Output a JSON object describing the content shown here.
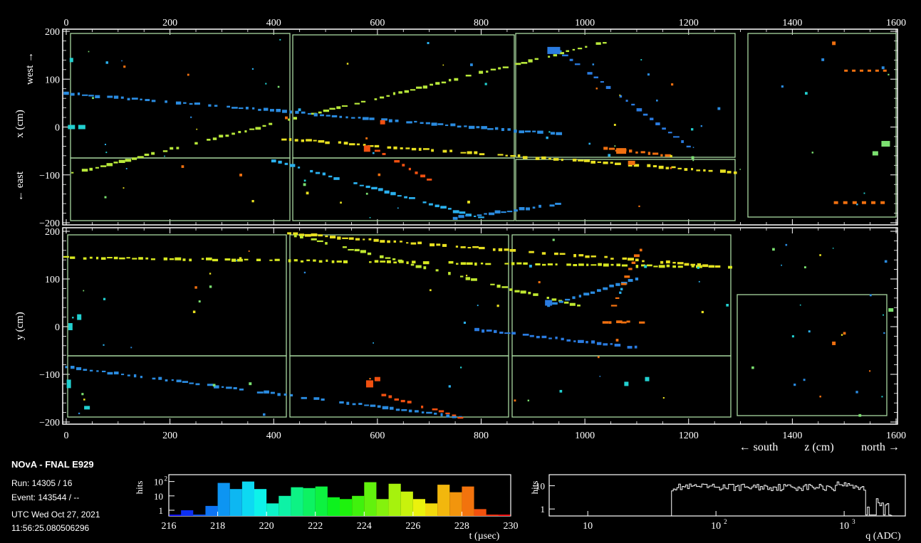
{
  "event_info": {
    "title": "NOvA - FNAL E929",
    "run": "Run:  14305 / 16",
    "event": "Event: 143544 / --",
    "date": "UTC Wed Oct 27, 2021",
    "time": "11:56:25.080506296"
  },
  "top_view": {
    "x_ticks": [
      "0",
      "200",
      "400",
      "600",
      "800",
      "1000",
      "1200",
      "1400",
      "1600"
    ],
    "y_ticks": [
      "200",
      "100",
      "0",
      "−100",
      "−200"
    ],
    "ylabel_west": "west →",
    "ylabel_x": "x (cm)",
    "ylabel_east": "← east",
    "xlim": [
      0,
      1600
    ],
    "ylim": [
      -200,
      200
    ]
  },
  "side_view": {
    "x_ticks": [
      "0",
      "200",
      "400",
      "600",
      "800",
      "1000",
      "1200",
      "1400",
      "1600"
    ],
    "y_ticks": [
      "200",
      "100",
      "0",
      "−100",
      "−200"
    ],
    "ylabel": "y (cm)",
    "xlabel_south": "← south",
    "xlabel_z": "z (cm)",
    "xlabel_north": "north →",
    "xlim": [
      0,
      1600
    ],
    "ylim": [
      -200,
      200
    ]
  },
  "time_hist": {
    "ylabel": "hits",
    "xlabel": "t (µsec)",
    "x_ticks": [
      "216",
      "218",
      "220",
      "222",
      "224",
      "226",
      "228",
      "230"
    ],
    "y_ticks_major": [
      "10",
      "1"
    ],
    "y_tick_top": "10"
  },
  "charge_hist": {
    "ylabel": "hits",
    "xlabel": "q (ADC)",
    "x_ticks": [
      "10",
      "10",
      "10"
    ],
    "x_ticks_exp": [
      "",
      "2",
      "3"
    ],
    "y_ticks": [
      "10",
      "1"
    ]
  },
  "chart_data": [
    {
      "type": "scatter",
      "title": "",
      "xlabel": "",
      "ylabel": "x (cm)",
      "xlim": [
        0,
        1600
      ],
      "ylim": [
        -200,
        200
      ],
      "tracks": [
        {
          "z": [
            0,
            1050
          ],
          "x": [
            -100,
            180
          ],
          "color": "#b8e83a"
        },
        {
          "z": [
            0,
            950
          ],
          "x": [
            70,
            -15
          ],
          "color": "#2a8be0"
        },
        {
          "z": [
            420,
            1290
          ],
          "x": [
            -25,
            -95
          ],
          "color": "#e8e020"
        },
        {
          "z": [
            950,
            1200
          ],
          "x": [
            160,
            -40
          ],
          "color": "#2a7be0"
        },
        {
          "z": [
            400,
            800
          ],
          "x": [
            -70,
            -190
          ],
          "color": "#2ab0ee"
        },
        {
          "z": [
            750,
            960
          ],
          "x": [
            -190,
            -160
          ],
          "color": "#2a8be0"
        },
        {
          "z": [
            600,
            700
          ],
          "x": [
            -50,
            -110
          ],
          "color": "#f05010"
        },
        {
          "z": [
            1040,
            1160
          ],
          "x": [
            -45,
            -60
          ],
          "color": "#f07010"
        }
      ]
    },
    {
      "type": "scatter",
      "title": "",
      "xlabel": "z (cm)",
      "ylabel": "y (cm)",
      "xlim": [
        0,
        1600
      ],
      "ylim": [
        -200,
        200
      ],
      "tracks": [
        {
          "z": [
            0,
            1280
          ],
          "y": [
            145,
            125
          ],
          "color": "#d8e820"
        },
        {
          "z": [
            430,
            1280
          ],
          "y": [
            195,
            125
          ],
          "color": "#e8e020"
        },
        {
          "z": [
            430,
            1000
          ],
          "y": [
            195,
            40
          ],
          "color": "#c0e830"
        },
        {
          "z": [
            0,
            760
          ],
          "y": [
            -85,
            -190
          ],
          "color": "#2a8be0"
        },
        {
          "z": [
            780,
            1110
          ],
          "y": [
            -5,
            -45
          ],
          "color": "#2a7be0"
        },
        {
          "z": [
            930,
            1100
          ],
          "y": [
            45,
            100
          ],
          "color": "#2a8be0"
        },
        {
          "z": [
            1040,
            1110
          ],
          "y": [
            10,
            10
          ],
          "color": "#f07010"
        },
        {
          "z": [
            1050,
            1100
          ],
          "y": [
            30,
            150
          ],
          "color": "#f07010"
        },
        {
          "z": [
            600,
            760
          ],
          "y": [
            -140,
            -190
          ],
          "color": "#f05010"
        }
      ]
    },
    {
      "type": "bar",
      "title": "",
      "xlabel": "t (µsec)",
      "ylabel": "hits",
      "xlim": [
        216,
        230
      ],
      "y_scale": "log",
      "bins_start": 216,
      "bin_width": 0.5,
      "values": [
        0.5,
        1,
        0.5,
        2,
        80,
        30,
        100,
        30,
        3,
        10,
        40,
        35,
        45,
        8,
        6,
        10,
        90,
        6,
        70,
        20,
        6,
        3,
        60,
        18,
        45,
        1.2,
        0.5,
        0.5
      ]
    },
    {
      "type": "bar",
      "title": "",
      "xlabel": "q (ADC)",
      "ylabel": "hits",
      "x_scale": "log",
      "y_scale": "log",
      "xlim": [
        5,
        3000
      ]
    }
  ]
}
